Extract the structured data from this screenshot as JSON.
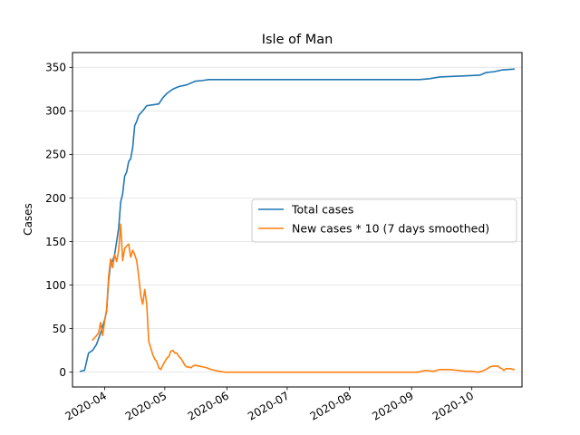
{
  "chart_data": {
    "type": "line",
    "title": "Isle of Man",
    "xlabel": "",
    "ylabel": "Cases",
    "x_type": "date",
    "xlim": [
      "2020-03-16",
      "2020-10-26"
    ],
    "ylim": [
      -17,
      367
    ],
    "x_ticks": [
      "2020-04",
      "2020-05",
      "2020-06",
      "2020-07",
      "2020-08",
      "2020-09",
      "2020-10"
    ],
    "y_ticks": [
      0,
      50,
      100,
      150,
      200,
      250,
      300,
      350
    ],
    "grid": "horizontal",
    "legend": "center-right",
    "series": [
      {
        "name": "Total cases",
        "color": "#1f77b4",
        "points": [
          [
            "2020-03-20",
            1
          ],
          [
            "2020-03-22",
            2
          ],
          [
            "2020-03-24",
            22
          ],
          [
            "2020-03-26",
            25
          ],
          [
            "2020-03-28",
            32
          ],
          [
            "2020-03-30",
            45
          ],
          [
            "2020-04-01",
            60
          ],
          [
            "2020-04-02",
            70
          ],
          [
            "2020-04-03",
            105
          ],
          [
            "2020-04-04",
            125
          ],
          [
            "2020-04-05",
            128
          ],
          [
            "2020-04-06",
            135
          ],
          [
            "2020-04-07",
            150
          ],
          [
            "2020-04-08",
            165
          ],
          [
            "2020-04-09",
            195
          ],
          [
            "2020-04-10",
            205
          ],
          [
            "2020-04-11",
            225
          ],
          [
            "2020-04-12",
            230
          ],
          [
            "2020-04-13",
            242
          ],
          [
            "2020-04-14",
            245
          ],
          [
            "2020-04-15",
            258
          ],
          [
            "2020-04-16",
            283
          ],
          [
            "2020-04-17",
            288
          ],
          [
            "2020-04-18",
            295
          ],
          [
            "2020-04-20",
            300
          ],
          [
            "2020-04-22",
            306
          ],
          [
            "2020-04-25",
            307
          ],
          [
            "2020-04-28",
            308
          ],
          [
            "2020-04-30",
            315
          ],
          [
            "2020-05-02",
            320
          ],
          [
            "2020-05-05",
            325
          ],
          [
            "2020-05-08",
            328
          ],
          [
            "2020-05-12",
            330
          ],
          [
            "2020-05-16",
            334
          ],
          [
            "2020-05-20",
            335
          ],
          [
            "2020-05-23",
            336
          ],
          [
            "2020-06-15",
            336
          ],
          [
            "2020-07-15",
            336
          ],
          [
            "2020-08-15",
            336
          ],
          [
            "2020-09-05",
            336
          ],
          [
            "2020-09-10",
            337
          ],
          [
            "2020-09-15",
            339
          ],
          [
            "2020-09-25",
            340
          ],
          [
            "2020-10-05",
            341
          ],
          [
            "2020-10-08",
            344
          ],
          [
            "2020-10-12",
            345
          ],
          [
            "2020-10-16",
            347
          ],
          [
            "2020-10-22",
            348
          ]
        ]
      },
      {
        "name": "New cases * 10 (7 days smoothed)",
        "color": "#ff7f0e",
        "points": [
          [
            "2020-03-26",
            37
          ],
          [
            "2020-03-28",
            42
          ],
          [
            "2020-03-29",
            45
          ],
          [
            "2020-03-30",
            57
          ],
          [
            "2020-03-31",
            42
          ],
          [
            "2020-04-01",
            58
          ],
          [
            "2020-04-02",
            72
          ],
          [
            "2020-04-03",
            110
          ],
          [
            "2020-04-04",
            130
          ],
          [
            "2020-04-05",
            120
          ],
          [
            "2020-04-06",
            135
          ],
          [
            "2020-04-07",
            127
          ],
          [
            "2020-04-08",
            140
          ],
          [
            "2020-04-09",
            170
          ],
          [
            "2020-04-10",
            128
          ],
          [
            "2020-04-11",
            142
          ],
          [
            "2020-04-12",
            145
          ],
          [
            "2020-04-13",
            147
          ],
          [
            "2020-04-14",
            132
          ],
          [
            "2020-04-15",
            140
          ],
          [
            "2020-04-16",
            135
          ],
          [
            "2020-04-17",
            128
          ],
          [
            "2020-04-18",
            110
          ],
          [
            "2020-04-19",
            88
          ],
          [
            "2020-04-20",
            78
          ],
          [
            "2020-04-21",
            95
          ],
          [
            "2020-04-22",
            78
          ],
          [
            "2020-04-23",
            35
          ],
          [
            "2020-04-24",
            28
          ],
          [
            "2020-04-25",
            20
          ],
          [
            "2020-04-26",
            15
          ],
          [
            "2020-04-27",
            12
          ],
          [
            "2020-04-28",
            5
          ],
          [
            "2020-04-29",
            3
          ],
          [
            "2020-04-30",
            8
          ],
          [
            "2020-05-01",
            12
          ],
          [
            "2020-05-02",
            16
          ],
          [
            "2020-05-03",
            18
          ],
          [
            "2020-05-04",
            24
          ],
          [
            "2020-05-05",
            25
          ],
          [
            "2020-05-06",
            22
          ],
          [
            "2020-05-07",
            22
          ],
          [
            "2020-05-08",
            18
          ],
          [
            "2020-05-09",
            16
          ],
          [
            "2020-05-10",
            12
          ],
          [
            "2020-05-11",
            8
          ],
          [
            "2020-05-12",
            6
          ],
          [
            "2020-05-13",
            6
          ],
          [
            "2020-05-14",
            5
          ],
          [
            "2020-05-15",
            7
          ],
          [
            "2020-05-16",
            8
          ],
          [
            "2020-05-18",
            7
          ],
          [
            "2020-05-20",
            6
          ],
          [
            "2020-05-22",
            5
          ],
          [
            "2020-05-24",
            3
          ],
          [
            "2020-05-26",
            2
          ],
          [
            "2020-05-28",
            1
          ],
          [
            "2020-05-31",
            0
          ],
          [
            "2020-07-01",
            0
          ],
          [
            "2020-08-01",
            0
          ],
          [
            "2020-09-04",
            0
          ],
          [
            "2020-09-06",
            1
          ],
          [
            "2020-09-08",
            2
          ],
          [
            "2020-09-12",
            1
          ],
          [
            "2020-09-15",
            3
          ],
          [
            "2020-09-20",
            3
          ],
          [
            "2020-09-24",
            2
          ],
          [
            "2020-09-28",
            1
          ],
          [
            "2020-10-01",
            1
          ],
          [
            "2020-10-04",
            0
          ],
          [
            "2020-10-06",
            1
          ],
          [
            "2020-10-08",
            3
          ],
          [
            "2020-10-10",
            6
          ],
          [
            "2020-10-12",
            7
          ],
          [
            "2020-10-14",
            7
          ],
          [
            "2020-10-15",
            5
          ],
          [
            "2020-10-16",
            4
          ],
          [
            "2020-10-17",
            2
          ],
          [
            "2020-10-18",
            4
          ],
          [
            "2020-10-20",
            4
          ],
          [
            "2020-10-22",
            3
          ]
        ]
      }
    ]
  }
}
